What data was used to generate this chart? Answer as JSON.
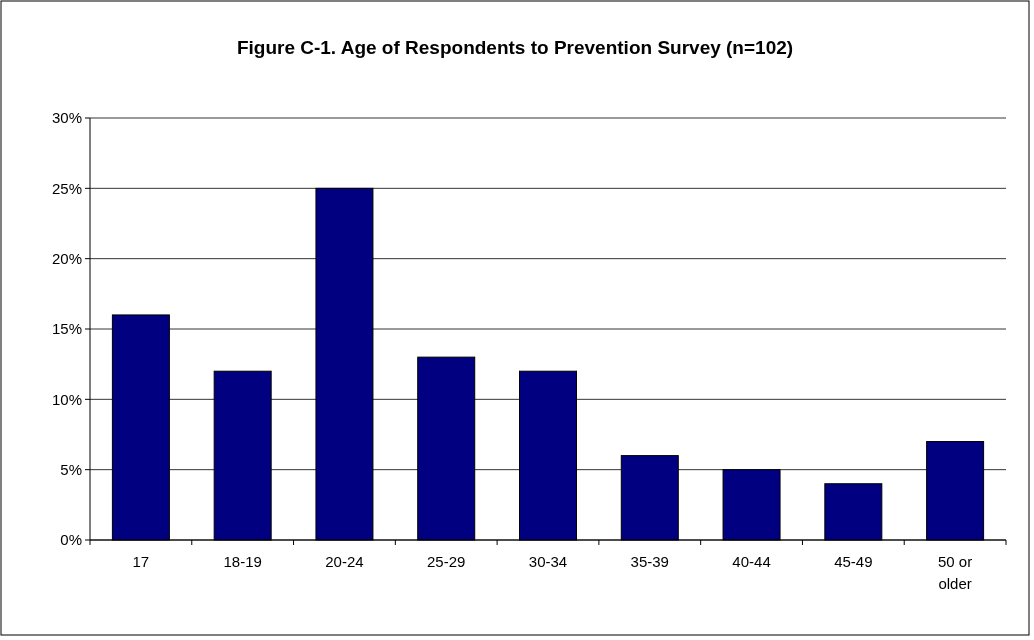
{
  "chart_data": {
    "type": "bar",
    "title": "Figure C-1.  Age of Respondents to Prevention Survey (n=102)",
    "categories": [
      "17",
      "18-19",
      "20-24",
      "25-29",
      "30-34",
      "35-39",
      "40-44",
      "45-49",
      "50 or older"
    ],
    "values": [
      16,
      12,
      25,
      13,
      12,
      6,
      5,
      4,
      7
    ],
    "color": "#000080",
    "ylim": [
      0,
      30
    ],
    "yticks": [
      {
        "value": 0,
        "label": "0%"
      },
      {
        "value": 5,
        "label": "5%"
      },
      {
        "value": 10,
        "label": "10%"
      },
      {
        "value": 15,
        "label": "15%"
      },
      {
        "value": 20,
        "label": "20%"
      },
      {
        "value": 25,
        "label": "25%"
      },
      {
        "value": 30,
        "label": "30%"
      }
    ],
    "grid": "y"
  }
}
